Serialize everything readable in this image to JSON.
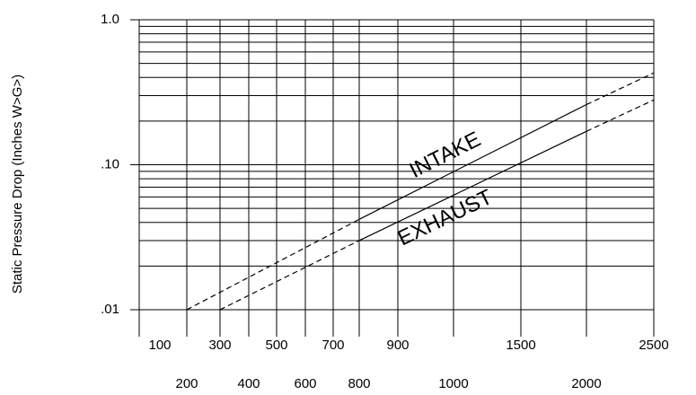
{
  "chart_data": {
    "type": "line",
    "y_label": "Static Pressure Drop (Inches W>G>)",
    "log_y": true,
    "ylim": [
      0.01,
      1
    ],
    "yticks": [
      {
        "value": 0.01,
        "label": ".01"
      },
      {
        "value": 0.1,
        "label": ".10"
      },
      {
        "value": 1,
        "label": "1.0"
      }
    ],
    "minor_yticks": [
      0.02,
      0.03,
      0.04,
      0.05,
      0.06,
      0.07,
      0.08,
      0.09,
      0.2,
      0.3,
      0.4,
      0.5,
      0.6,
      0.7,
      0.8,
      0.9
    ],
    "xticks": [
      100,
      200,
      300,
      400,
      500,
      600,
      700,
      800,
      900,
      1000,
      1500,
      2000,
      2500
    ],
    "color": "#000000",
    "series": [
      {
        "name": "INTAKE",
        "segments": [
          {
            "style": "dashed",
            "x": [
              200,
              800
            ],
            "values": [
              0.01,
              0.042
            ]
          },
          {
            "style": "solid",
            "x": [
              800,
              2000
            ],
            "values": [
              0.042,
              0.26
            ]
          },
          {
            "style": "dashed",
            "x": [
              2000,
              2500
            ],
            "values": [
              0.26,
              0.43
            ]
          }
        ]
      },
      {
        "name": "EXHAUST",
        "segments": [
          {
            "style": "dashed",
            "x": [
              300,
              800
            ],
            "values": [
              0.01,
              0.03
            ]
          },
          {
            "style": "solid",
            "x": [
              800,
              2000
            ],
            "values": [
              0.03,
              0.17
            ]
          },
          {
            "style": "dashed",
            "x": [
              2000,
              2500
            ],
            "values": [
              0.17,
              0.28
            ]
          }
        ]
      }
    ]
  }
}
